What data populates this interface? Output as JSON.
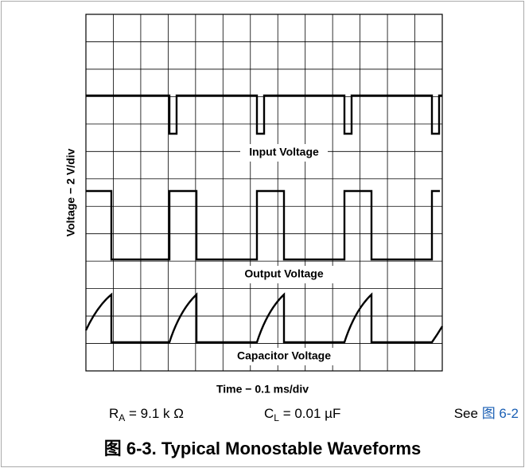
{
  "figure": {
    "y_axis_label": "Voltage − 2 V/div",
    "x_axis_label": "Time − 0.1 ms/div",
    "traces": [
      "Input Voltage",
      "Output Voltage",
      "Capacitor Voltage"
    ],
    "params": {
      "ra": {
        "symbol": "R",
        "sub": "A",
        "rest": " = 9.1 k Ω"
      },
      "cl": {
        "symbol": "C",
        "sub": "L",
        "rest": " = 0.01 µF"
      },
      "see": {
        "text": "See ",
        "link": "图 6-2"
      }
    },
    "caption": "图 6-3. Typical Monostable Waveforms"
  }
}
